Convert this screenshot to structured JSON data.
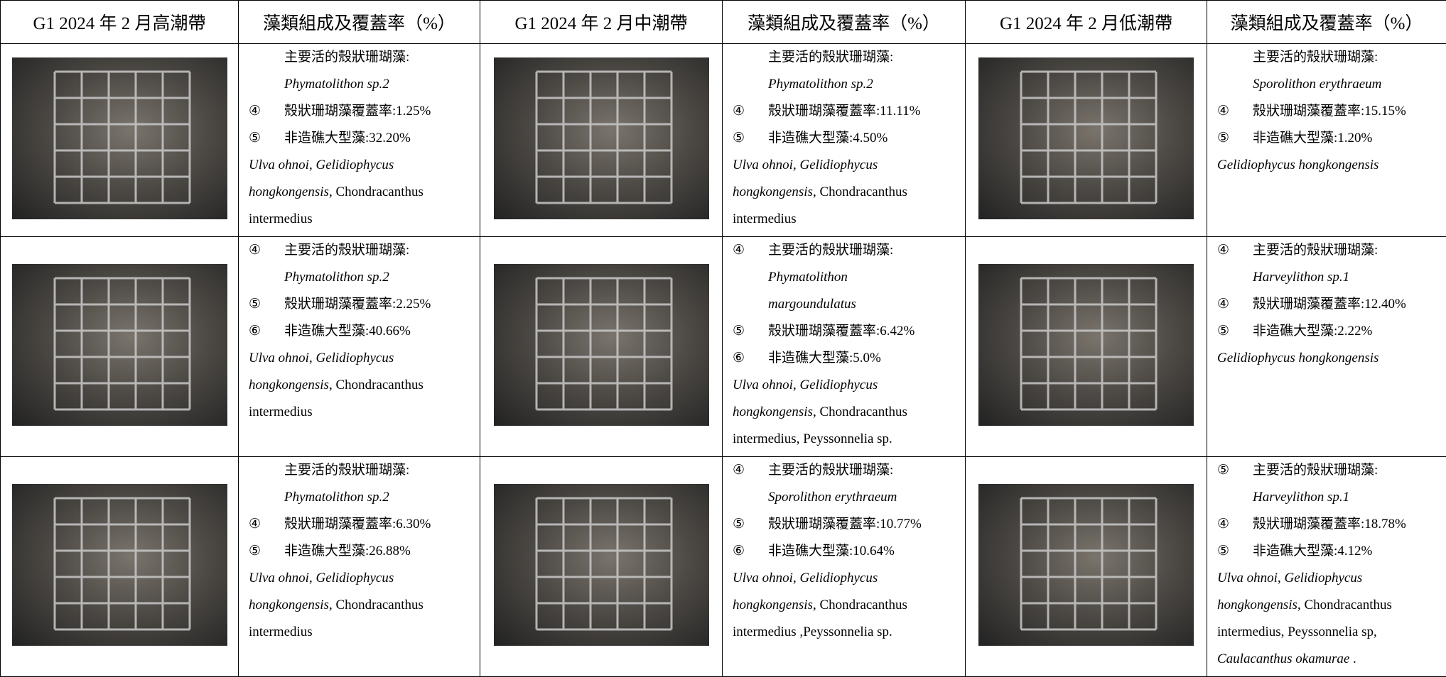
{
  "header": [
    "G1 2024 年 2 月高潮帶",
    "藻類組成及覆蓋率（%）",
    "G1 2024 年 2 月中潮帶",
    "藻類組成及覆蓋率（%）",
    "G1 2024 年 2 月低潮帶",
    "藻類組成及覆蓋率（%）"
  ],
  "rows": [
    {
      "cells": [
        {
          "items": [
            {
              "segments": [
                "主要活的殼狀珊瑚藻:"
              ]
            },
            {
              "segments": [
                {
                  "text": "Phymatolithon sp.2",
                  "italic": true
                }
              ]
            },
            {
              "marker": "④",
              "segments": [
                "殼狀珊瑚藻覆蓋率:1.25%"
              ]
            },
            {
              "marker": "⑤",
              "segments": [
                "非造礁大型藻:32.20%"
              ]
            }
          ],
          "notes": [
            [
              {
                "text": "Ulva ohnoi",
                "italic": true
              },
              ", ",
              {
                "text": "Gelidiophycus",
                "italic": true
              }
            ],
            [
              {
                "text": "hongkongensis",
                "italic": true
              },
              ", Chondracanthus"
            ],
            [
              "intermedius"
            ]
          ]
        },
        {
          "items": [
            {
              "segments": [
                "主要活的殼狀珊瑚藻:"
              ]
            },
            {
              "segments": [
                {
                  "text": "Phymatolithon sp.2",
                  "italic": true
                }
              ]
            },
            {
              "marker": "④",
              "segments": [
                "殼狀珊瑚藻覆蓋率:11.11%"
              ]
            },
            {
              "marker": "⑤",
              "segments": [
                "非造礁大型藻:4.50%"
              ]
            }
          ],
          "notes": [
            [
              {
                "text": "Ulva ohnoi",
                "italic": true
              },
              ", ",
              {
                "text": "Gelidiophycus",
                "italic": true
              }
            ],
            [
              {
                "text": "hongkongensis",
                "italic": true
              },
              ", Chondracanthus"
            ],
            [
              "intermedius"
            ]
          ]
        },
        {
          "items": [
            {
              "segments": [
                "主要活的殼狀珊瑚藻:"
              ]
            },
            {
              "segments": [
                {
                  "text": "Sporolithon erythraeum",
                  "italic": true
                }
              ]
            },
            {
              "marker": "④",
              "segments": [
                "殼狀珊瑚藻覆蓋率:15.15%"
              ]
            },
            {
              "marker": "⑤",
              "segments": [
                "非造礁大型藻:1.20%"
              ]
            }
          ],
          "notes": [
            [
              {
                "text": "Gelidiophycus hongkongensis",
                "italic": true
              }
            ]
          ]
        }
      ]
    },
    {
      "cells": [
        {
          "items": [
            {
              "marker": "④",
              "segments": [
                "主要活的殼狀珊瑚藻:"
              ]
            },
            {
              "segments": [
                {
                  "text": "Phymatolithon sp.2",
                  "italic": true
                }
              ]
            },
            {
              "marker": "⑤",
              "segments": [
                "殼狀珊瑚藻覆蓋率:2.25%"
              ]
            },
            {
              "marker": "⑥",
              "segments": [
                "非造礁大型藻:40.66%"
              ]
            }
          ],
          "notes": [
            [
              {
                "text": "Ulva ohnoi",
                "italic": true
              },
              ", ",
              {
                "text": "Gelidiophycus",
                "italic": true
              }
            ],
            [
              {
                "text": "hongkongensis",
                "italic": true
              },
              ", Chondracanthus"
            ],
            [
              "intermedius"
            ]
          ]
        },
        {
          "items": [
            {
              "marker": "④",
              "segments": [
                "主要活的殼狀珊瑚藻:"
              ]
            },
            {
              "segments": [
                {
                  "text": "Phymatolithon",
                  "italic": true
                }
              ]
            },
            {
              "segments": [
                {
                  "text": "margoundulatus",
                  "italic": true
                }
              ]
            },
            {
              "marker": "⑤",
              "segments": [
                "殼狀珊瑚藻覆蓋率:6.42%"
              ]
            },
            {
              "marker": "⑥",
              "segments": [
                "非造礁大型藻:5.0%"
              ]
            }
          ],
          "notes": [
            [
              {
                "text": "Ulva ohnoi",
                "italic": true
              },
              ", ",
              {
                "text": "Gelidiophycus",
                "italic": true
              }
            ],
            [
              {
                "text": "hongkongensis",
                "italic": true
              },
              ", Chondracanthus"
            ],
            [
              "intermedius, Peyssonnelia sp."
            ]
          ]
        },
        {
          "items": [
            {
              "marker": "④",
              "segments": [
                "主要活的殼狀珊瑚藻:"
              ]
            },
            {
              "segments": [
                {
                  "text": "Harveylithon sp.1",
                  "italic": true
                }
              ]
            },
            {
              "marker": "④",
              "segments": [
                "殼狀珊瑚藻覆蓋率:12.40%"
              ]
            },
            {
              "marker": "⑤",
              "segments": [
                "非造礁大型藻:2.22%"
              ]
            }
          ],
          "notes": [
            [
              {
                "text": "Gelidiophycus hongkongensis",
                "italic": true
              }
            ]
          ]
        }
      ]
    },
    {
      "cells": [
        {
          "items": [
            {
              "segments": [
                "主要活的殼狀珊瑚藻:"
              ]
            },
            {
              "segments": [
                {
                  "text": "Phymatolithon sp.2",
                  "italic": true
                }
              ]
            },
            {
              "marker": "④",
              "segments": [
                "殼狀珊瑚藻覆蓋率:6.30%"
              ]
            },
            {
              "marker": "⑤",
              "segments": [
                "非造礁大型藻:26.88%"
              ]
            }
          ],
          "notes": [
            [
              {
                "text": "Ulva ohnoi",
                "italic": true
              },
              ", ",
              {
                "text": "Gelidiophycus",
                "italic": true
              }
            ],
            [
              {
                "text": "hongkongensis",
                "italic": true
              },
              ", Chondracanthus"
            ],
            [
              "intermedius"
            ]
          ]
        },
        {
          "items": [
            {
              "marker": "④",
              "segments": [
                "主要活的殼狀珊瑚藻:"
              ]
            },
            {
              "segments": [
                {
                  "text": "Sporolithon erythraeum",
                  "italic": true
                }
              ]
            },
            {
              "marker": "⑤",
              "segments": [
                "殼狀珊瑚藻覆蓋率:10.77%"
              ]
            },
            {
              "marker": "⑥",
              "segments": [
                "非造礁大型藻:10.64%"
              ]
            }
          ],
          "notes": [
            [
              {
                "text": "Ulva ohnoi",
                "italic": true
              },
              ", ",
              {
                "text": "Gelidiophycus",
                "italic": true
              }
            ],
            [
              {
                "text": "hongkongensis",
                "italic": true
              },
              ", Chondracanthus"
            ],
            [
              "intermedius ,Peyssonnelia sp."
            ]
          ]
        },
        {
          "items": [
            {
              "marker": "⑤",
              "segments": [
                "主要活的殼狀珊瑚藻:"
              ]
            },
            {
              "segments": [
                {
                  "text": "Harveylithon sp.1",
                  "italic": true
                }
              ]
            },
            {
              "marker": "④",
              "segments": [
                "殼狀珊瑚藻覆蓋率:18.78%"
              ]
            },
            {
              "marker": "⑤",
              "segments": [
                "非造礁大型藻:4.12%"
              ]
            }
          ],
          "notes": [
            [
              {
                "text": "Ulva ohnoi",
                "italic": true
              },
              ", ",
              {
                "text": "Gelidiophycus",
                "italic": true
              }
            ],
            [
              {
                "text": "hongkongensis",
                "italic": true
              },
              ", Chondracanthus"
            ],
            [
              "intermedius, Peyssonnelia sp,"
            ],
            [
              {
                "text": "Caulacanthus okamurae",
                "italic": true
              },
              " ."
            ]
          ]
        }
      ]
    }
  ]
}
